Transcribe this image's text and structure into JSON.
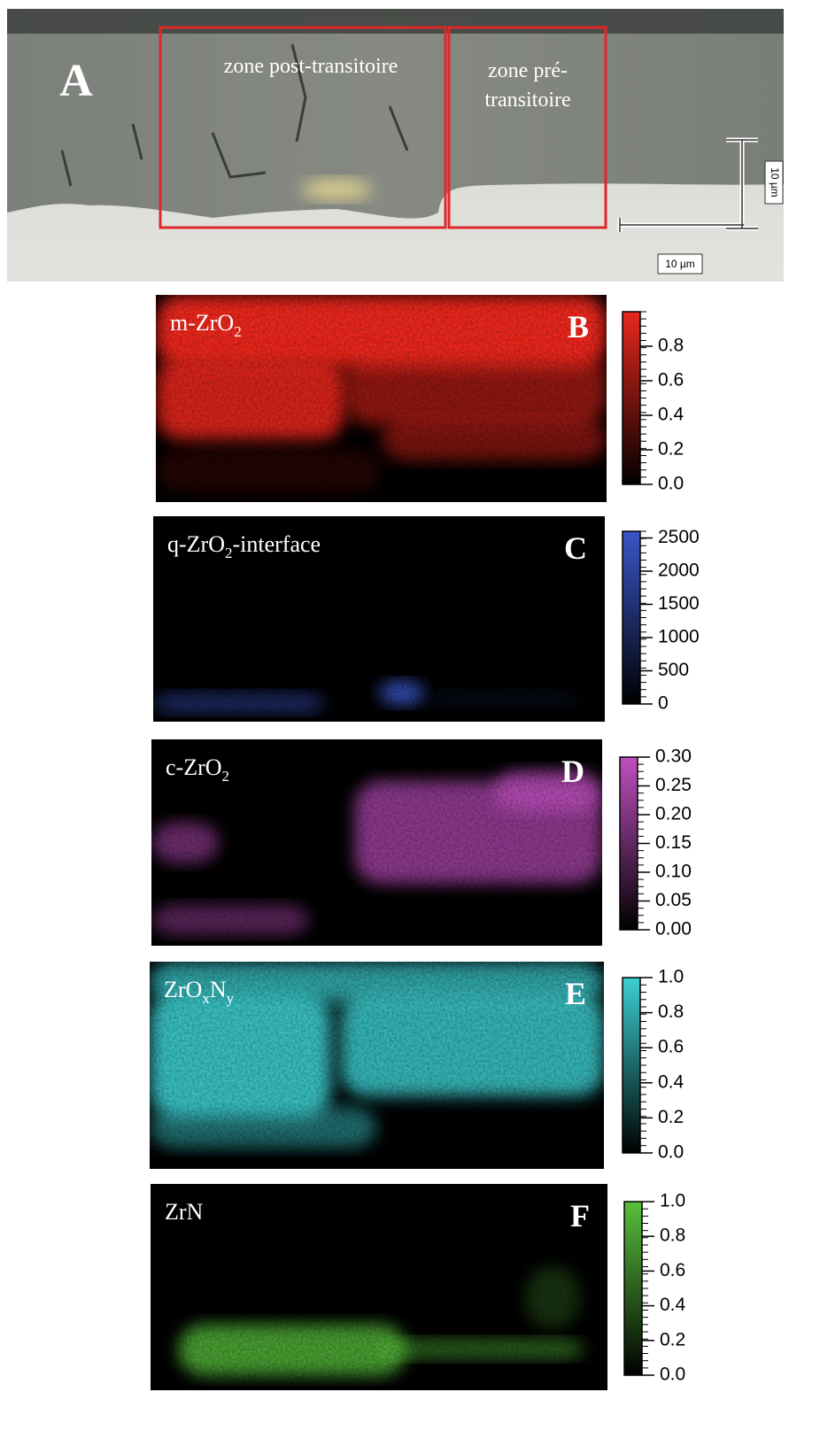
{
  "panel_a": {
    "letter": "A",
    "zone_post": "zone post-transitoire",
    "zone_pre": [
      "zone pré-",
      "transitoire"
    ],
    "scale_vertical": "10 µm",
    "scale_horizontal": "10 µm"
  },
  "maps": [
    {
      "letter": "B",
      "label": [
        {
          "text": "m-ZrO"
        },
        {
          "sub": "2"
        }
      ],
      "color": "#e8281e",
      "clim": [
        0,
        1
      ],
      "ticks": [
        {
          "value": 0,
          "label": "0.0"
        },
        0.2,
        0.4,
        0.6,
        0.8
      ]
    },
    {
      "letter": "C",
      "label": [
        {
          "text": "q-ZrO"
        },
        {
          "sub": "2"
        },
        {
          "text": "-interface"
        }
      ],
      "color": "#3a56c8",
      "clim": [
        0,
        2600
      ],
      "ticks": [
        0,
        500,
        1000,
        1500,
        2000,
        2500
      ]
    },
    {
      "letter": "D",
      "label": [
        {
          "text": "c-ZrO"
        },
        {
          "sub": "2"
        }
      ],
      "color": "#c050c0",
      "clim": [
        0,
        0.3
      ],
      "ticks": [
        {
          "value": 0,
          "label": "0.00"
        },
        0.05,
        {
          "value": 0.1,
          "label": "0.10"
        },
        0.15,
        {
          "value": 0.2,
          "label": "0.20"
        },
        0.25,
        {
          "value": 0.3,
          "label": "0.30"
        }
      ]
    },
    {
      "letter": "E",
      "label": [
        {
          "text": "ZrO"
        },
        {
          "sub": "x"
        },
        {
          "text": "N"
        },
        {
          "sub": "y"
        }
      ],
      "color": "#3ccfd2",
      "clim": [
        0,
        1
      ],
      "ticks": [
        {
          "value": 0,
          "label": "0.0"
        },
        0.2,
        0.4,
        0.6,
        0.8,
        {
          "value": 1,
          "label": "1.0"
        }
      ]
    },
    {
      "letter": "F",
      "label": [
        {
          "text": "ZrN"
        }
      ],
      "color": "#58c03c",
      "clim": [
        0,
        1
      ],
      "ticks": [
        {
          "value": 0,
          "label": "0.0"
        },
        0.2,
        0.4,
        0.6,
        0.8,
        {
          "value": 1,
          "label": "1.0"
        }
      ]
    }
  ]
}
